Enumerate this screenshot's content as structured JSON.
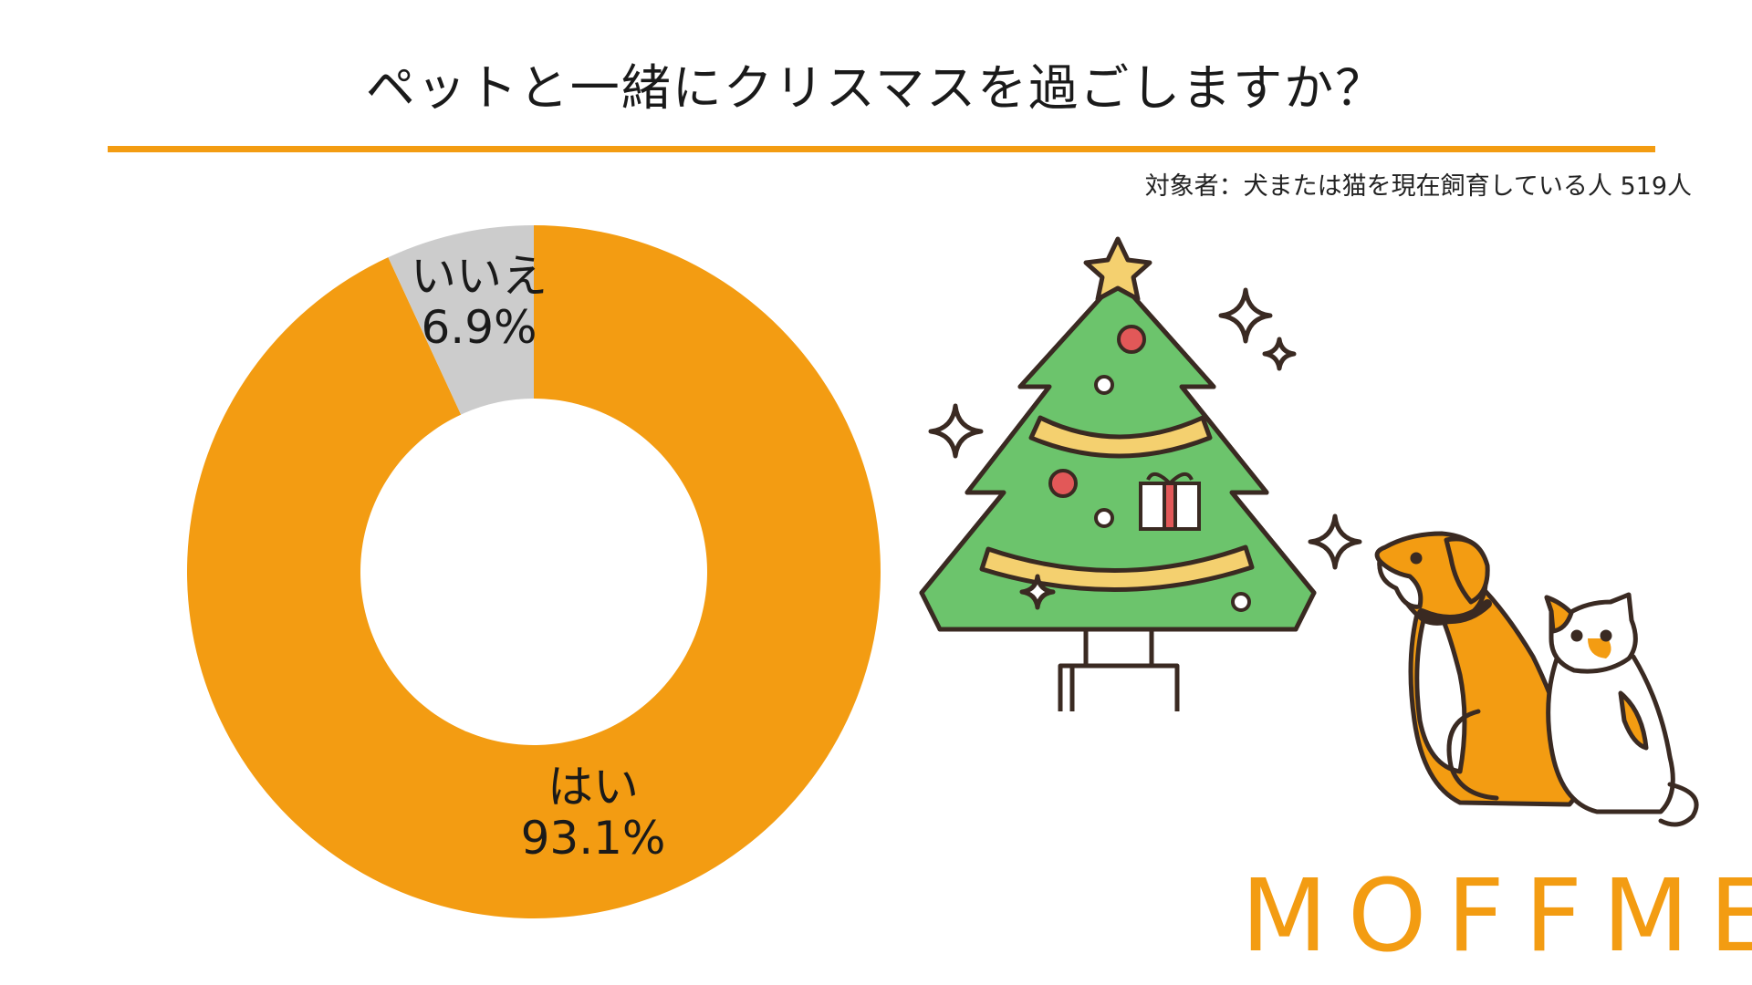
{
  "title": "ペットと一緒にクリスマスを過ごしますか？",
  "subject": "対象者：犬または猫を現在飼育している人 519人",
  "brand": "MOFFME",
  "colors": {
    "accent": "#f39c12",
    "yes": "#f39c12",
    "no": "#cccccc"
  },
  "chart_data": {
    "type": "pie",
    "title": "ペットと一緒にクリスマスを過ごしますか？",
    "slices": [
      {
        "label": "はい",
        "value": 93.1,
        "value_text": "93.1%",
        "color": "#f39c12"
      },
      {
        "label": "いいえ",
        "value": 6.9,
        "value_text": "6.9%",
        "color": "#cccccc"
      }
    ],
    "donut": true,
    "legend": "none"
  },
  "illustration": {
    "icons": [
      "christmas-tree-icon",
      "sparkle-icon",
      "dog-icon",
      "cat-icon"
    ]
  }
}
